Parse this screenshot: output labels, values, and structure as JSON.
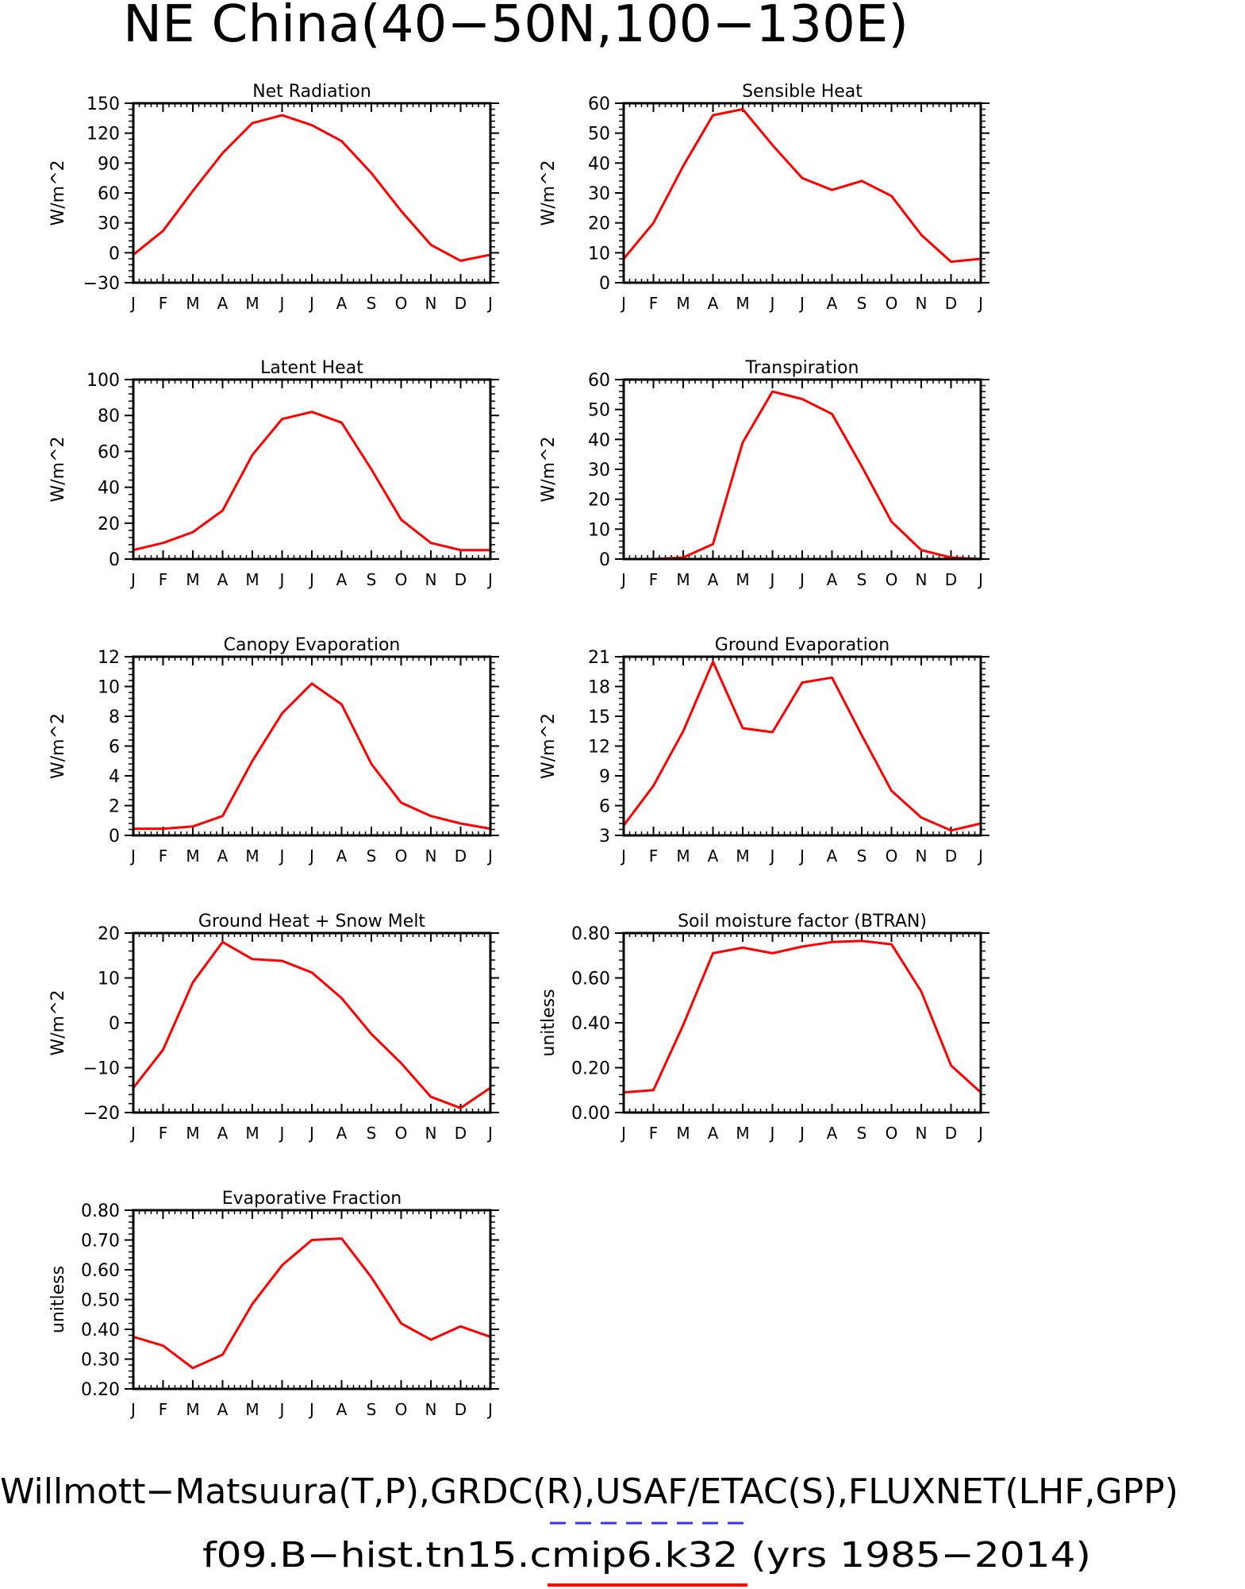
{
  "figure": {
    "title": "NE China(40−50N,100−130E)",
    "footer_line1": "Willmott−Matsuura(T,P),GRDC(R),USAF/ETAC(S),FLUXNET(LHF,GPP)",
    "footer_line2": "f09.B−hist.tn15.cmip6.k32 (yrs 1985−2014)",
    "observation_line_color": "#3333ff",
    "model_line_color": "#ff0000"
  },
  "chart_data": [
    {
      "type": "line",
      "title": "Net Radiation",
      "ylabel": "W/m^2",
      "x": [
        "J",
        "F",
        "M",
        "A",
        "M",
        "J",
        "J",
        "A",
        "S",
        "O",
        "N",
        "D",
        "J"
      ],
      "ylim": [
        -30,
        150
      ],
      "yticks": [
        -30,
        0,
        30,
        60,
        90,
        120,
        150
      ],
      "ytick_labels": [
        "−30",
        "0",
        "30",
        "60",
        "90",
        "120",
        "150"
      ],
      "series": [
        {
          "color": "#ff0000",
          "values": [
            -2,
            22,
            62,
            100,
            130,
            138,
            128,
            112,
            80,
            42,
            8,
            -8,
            -2
          ]
        }
      ]
    },
    {
      "type": "line",
      "title": "Sensible Heat",
      "ylabel": "W/m^2",
      "x": [
        "J",
        "F",
        "M",
        "A",
        "M",
        "J",
        "J",
        "A",
        "S",
        "O",
        "N",
        "D",
        "J"
      ],
      "ylim": [
        0,
        60
      ],
      "yticks": [
        0,
        10,
        20,
        30,
        40,
        50,
        60
      ],
      "ytick_labels": [
        "0",
        "10",
        "20",
        "30",
        "40",
        "50",
        "60"
      ],
      "series": [
        {
          "color": "#ff0000",
          "values": [
            8,
            20,
            39,
            56,
            58,
            46,
            35,
            31,
            34,
            29,
            16,
            7,
            8
          ]
        }
      ]
    },
    {
      "type": "line",
      "title": "Latent Heat",
      "ylabel": "W/m^2",
      "x": [
        "J",
        "F",
        "M",
        "A",
        "M",
        "J",
        "J",
        "A",
        "S",
        "O",
        "N",
        "D",
        "J"
      ],
      "ylim": [
        0,
        100
      ],
      "yticks": [
        0,
        20,
        40,
        60,
        80,
        100
      ],
      "ytick_labels": [
        "0",
        "20",
        "40",
        "60",
        "80",
        "100"
      ],
      "series": [
        {
          "color": "#ff0000",
          "values": [
            5,
            9,
            15,
            27,
            58,
            78,
            82,
            76,
            50,
            22,
            9,
            5,
            5
          ]
        }
      ]
    },
    {
      "type": "line",
      "title": "Transpiration",
      "ylabel": "W/m^2",
      "x": [
        "J",
        "F",
        "M",
        "A",
        "M",
        "J",
        "J",
        "A",
        "S",
        "O",
        "N",
        "D",
        "J"
      ],
      "ylim": [
        0,
        60
      ],
      "yticks": [
        0,
        10,
        20,
        30,
        40,
        50,
        60
      ],
      "ytick_labels": [
        "0",
        "10",
        "20",
        "30",
        "40",
        "50",
        "60"
      ],
      "series": [
        {
          "color": "#ff0000",
          "values": [
            0,
            0,
            0.5,
            5,
            39,
            56,
            53.5,
            48.5,
            31,
            12.5,
            3,
            0.5,
            0
          ]
        }
      ]
    },
    {
      "type": "line",
      "title": "Canopy Evaporation",
      "ylabel": "W/m^2",
      "x": [
        "J",
        "F",
        "M",
        "A",
        "M",
        "J",
        "J",
        "A",
        "S",
        "O",
        "N",
        "D",
        "J"
      ],
      "ylim": [
        0,
        12
      ],
      "yticks": [
        0,
        2,
        4,
        6,
        8,
        10,
        12
      ],
      "ytick_labels": [
        "0",
        "2",
        "4",
        "6",
        "8",
        "10",
        "12"
      ],
      "series": [
        {
          "color": "#ff0000",
          "values": [
            0.45,
            0.45,
            0.6,
            1.3,
            5,
            8.2,
            10.2,
            8.8,
            4.8,
            2.2,
            1.3,
            0.8,
            0.45
          ]
        }
      ]
    },
    {
      "type": "line",
      "title": "Ground Evaporation",
      "ylabel": "W/m^2",
      "x": [
        "J",
        "F",
        "M",
        "A",
        "M",
        "J",
        "J",
        "A",
        "S",
        "O",
        "N",
        "D",
        "J"
      ],
      "ylim": [
        3,
        21
      ],
      "yticks": [
        3,
        6,
        9,
        12,
        15,
        18,
        21
      ],
      "ytick_labels": [
        "3",
        "6",
        "9",
        "12",
        "15",
        "18",
        "21"
      ],
      "series": [
        {
          "color": "#ff0000",
          "values": [
            4,
            8,
            13.5,
            20.5,
            13.8,
            13.4,
            18.4,
            18.9,
            13.1,
            7.5,
            4.8,
            3.5,
            4.2
          ]
        }
      ]
    },
    {
      "type": "line",
      "title": "Ground Heat + Snow Melt",
      "ylabel": "W/m^2",
      "x": [
        "J",
        "F",
        "M",
        "A",
        "M",
        "J",
        "J",
        "A",
        "S",
        "O",
        "N",
        "D",
        "J"
      ],
      "ylim": [
        -20,
        20
      ],
      "yticks": [
        -20,
        -10,
        0,
        10,
        20
      ],
      "ytick_labels": [
        "−20",
        "−10",
        "0",
        "10",
        "20"
      ],
      "series": [
        {
          "color": "#ff0000",
          "values": [
            -14.5,
            -6,
            9,
            18,
            14.2,
            13.8,
            11.2,
            5.5,
            -2.5,
            -9,
            -16.5,
            -19,
            -14.5
          ]
        }
      ]
    },
    {
      "type": "line",
      "title": "Soil moisture factor (BTRAN)",
      "ylabel": "unitless",
      "x": [
        "J",
        "F",
        "M",
        "A",
        "M",
        "J",
        "J",
        "A",
        "S",
        "O",
        "N",
        "D",
        "J"
      ],
      "ylim": [
        0,
        0.8
      ],
      "yticks": [
        0,
        0.2,
        0.4,
        0.6,
        0.8
      ],
      "ytick_labels": [
        "0.00",
        "0.20",
        "0.40",
        "0.60",
        "0.80"
      ],
      "series": [
        {
          "color": "#ff0000",
          "values": [
            0.09,
            0.1,
            0.39,
            0.71,
            0.735,
            0.71,
            0.74,
            0.76,
            0.765,
            0.75,
            0.54,
            0.21,
            0.09
          ]
        }
      ]
    },
    {
      "type": "line",
      "title": "Evaporative Fraction",
      "ylabel": "unitless",
      "x": [
        "J",
        "F",
        "M",
        "A",
        "M",
        "J",
        "J",
        "A",
        "S",
        "O",
        "N",
        "D",
        "J"
      ],
      "ylim": [
        0.2,
        0.8
      ],
      "yticks": [
        0.2,
        0.3,
        0.4,
        0.5,
        0.6,
        0.7,
        0.8
      ],
      "ytick_labels": [
        "0.20",
        "0.30",
        "0.40",
        "0.50",
        "0.60",
        "0.70",
        "0.80"
      ],
      "series": [
        {
          "color": "#ff0000",
          "values": [
            0.375,
            0.345,
            0.27,
            0.315,
            0.485,
            0.615,
            0.7,
            0.705,
            0.575,
            0.42,
            0.365,
            0.41,
            0.375
          ]
        }
      ]
    }
  ]
}
